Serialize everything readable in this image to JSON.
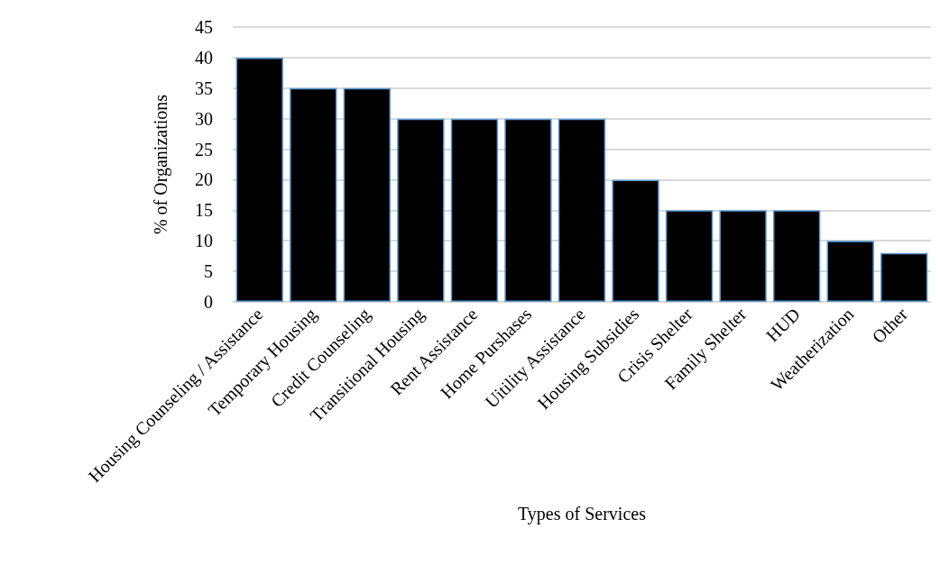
{
  "chart_data": {
    "type": "bar",
    "xlabel": "Types of Services",
    "ylabel": "% of Organizations",
    "categories": [
      "Housing Counseling / Assistance",
      "Temporary Housing",
      "Credit Counseling",
      "Transitional Housing",
      "Rent Assistance",
      "Home Purshases",
      "Uitility Assistance",
      "Housing Subsidies",
      "Crisis Shelter",
      "Family Shelter",
      "HUD",
      "Weatherization",
      "Other"
    ],
    "values": [
      40,
      35,
      35,
      30,
      30,
      30,
      30,
      20,
      15,
      15,
      15,
      10,
      8
    ],
    "color": "#000000",
    "ylim": [
      0,
      45
    ],
    "yticks": [
      0,
      5,
      10,
      15,
      20,
      25,
      30,
      35,
      40,
      45
    ],
    "grid": "y"
  }
}
